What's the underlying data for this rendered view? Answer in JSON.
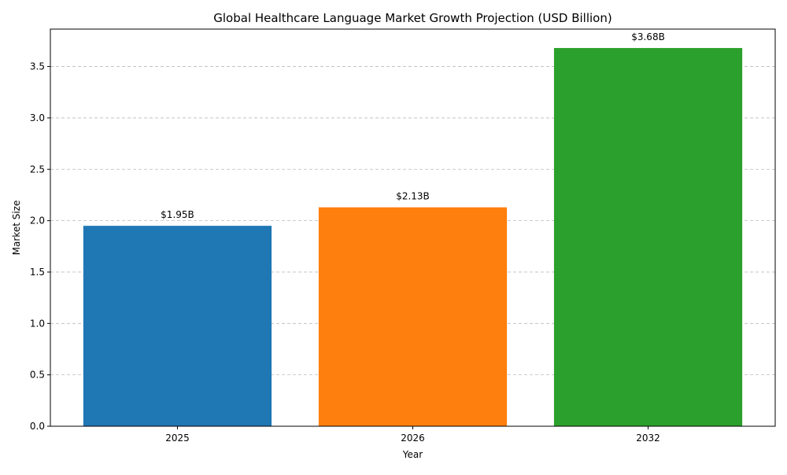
{
  "chart_data": {
    "type": "bar",
    "title": "Global Healthcare Language Market Growth Projection (USD Billion)",
    "xlabel": "Year",
    "ylabel": "Market Size",
    "categories": [
      "2025",
      "2026",
      "2032"
    ],
    "values": [
      1.95,
      2.13,
      3.68
    ],
    "data_labels": [
      "$1.95B",
      "$2.13B",
      "$3.68B"
    ],
    "colors": [
      "#1f77b4",
      "#ff7f0e",
      "#2ca02c"
    ],
    "ylim": [
      0,
      3.864
    ],
    "yticks": [
      "0.0",
      "0.5",
      "1.0",
      "1.5",
      "2.0",
      "2.5",
      "3.0",
      "3.5"
    ],
    "grid": "y-dashed",
    "legend": "none"
  }
}
